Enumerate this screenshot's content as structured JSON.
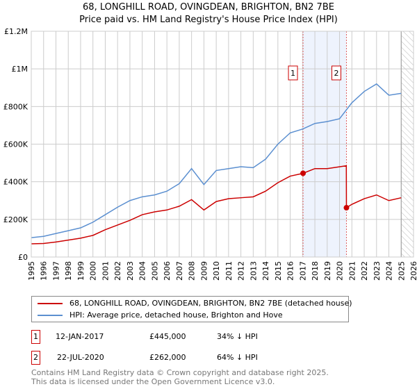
{
  "chart_data": {
    "type": "line",
    "title": "68, LONGHILL ROAD, OVINGDEAN, BRIGHTON, BN2 7BE",
    "subtitle": "Price paid vs. HM Land Registry's House Price Index (HPI)",
    "xlim": [
      1995,
      2026
    ],
    "ylim": [
      0,
      1200000
    ],
    "x_ticks": [
      "1995",
      "1996",
      "1997",
      "1998",
      "1999",
      "2000",
      "2001",
      "2002",
      "2003",
      "2004",
      "2005",
      "2006",
      "2007",
      "2008",
      "2009",
      "2010",
      "2011",
      "2012",
      "2013",
      "2014",
      "2015",
      "2016",
      "2017",
      "2018",
      "2019",
      "2020",
      "2021",
      "2022",
      "2023",
      "2024",
      "2025",
      "2026"
    ],
    "y_ticks": [
      {
        "v": 0,
        "l": "£0"
      },
      {
        "v": 200000,
        "l": "£200K"
      },
      {
        "v": 400000,
        "l": "£400K"
      },
      {
        "v": 600000,
        "l": "£600K"
      },
      {
        "v": 800000,
        "l": "£800K"
      },
      {
        "v": 1000000,
        "l": "£1M"
      },
      {
        "v": 1200000,
        "l": "£1.2M"
      }
    ],
    "grid": true,
    "shaded_period": [
      2017.04,
      2020.56
    ],
    "forecast_hatch_from": 2025.0,
    "series": [
      {
        "name": "68, LONGHILL ROAD, OVINGDEAN, BRIGHTON, BN2 7BE (detached house)",
        "color": "#cc0000",
        "x": [
          1995,
          1996,
          1997,
          1998,
          1999,
          2000,
          2001,
          2002,
          2003,
          2004,
          2005,
          2006,
          2007,
          2008,
          2009,
          2010,
          2011,
          2012,
          2013,
          2014,
          2015,
          2016,
          2017.04,
          2018,
          2019,
          2020.55,
          2020.56,
          2021,
          2022,
          2023,
          2024,
          2025
        ],
        "y": [
          70000,
          72000,
          80000,
          90000,
          100000,
          115000,
          145000,
          170000,
          195000,
          225000,
          240000,
          250000,
          270000,
          305000,
          250000,
          295000,
          310000,
          315000,
          320000,
          350000,
          395000,
          430000,
          445000,
          470000,
          470000,
          485000,
          262000,
          280000,
          310000,
          330000,
          300000,
          315000
        ]
      },
      {
        "name": "HPI: Average price, detached house, Brighton and Hove",
        "color": "#5b8fd0",
        "x": [
          1995,
          1996,
          1997,
          1998,
          1999,
          2000,
          2001,
          2002,
          2003,
          2004,
          2005,
          2006,
          2007,
          2008,
          2009,
          2010,
          2011,
          2012,
          2013,
          2014,
          2015,
          2016,
          2017,
          2018,
          2019,
          2020,
          2021,
          2022,
          2023,
          2024,
          2025
        ],
        "y": [
          103000,
          110000,
          125000,
          140000,
          155000,
          185000,
          225000,
          265000,
          300000,
          320000,
          330000,
          350000,
          390000,
          470000,
          385000,
          460000,
          470000,
          480000,
          475000,
          520000,
          600000,
          660000,
          680000,
          710000,
          720000,
          735000,
          820000,
          880000,
          920000,
          860000,
          870000
        ]
      }
    ],
    "markers": [
      {
        "label": "1",
        "x": 2017.04,
        "y": 445000
      },
      {
        "label": "2",
        "x": 2020.56,
        "y": 262000
      }
    ]
  },
  "legend": {
    "red": "68, LONGHILL ROAD, OVINGDEAN, BRIGHTON, BN2 7BE (detached house)",
    "blue": "HPI: Average price, detached house, Brighton and Hove"
  },
  "transactions": [
    {
      "n": "1",
      "date": "12-JAN-2017",
      "price": "£445,000",
      "hpi": "34% ↓ HPI"
    },
    {
      "n": "2",
      "date": "22-JUL-2020",
      "price": "£262,000",
      "hpi": "64% ↓ HPI"
    }
  ],
  "footer": {
    "line1": "Contains HM Land Registry data © Crown copyright and database right 2025.",
    "line2": "This data is licensed under the Open Government Licence v3.0."
  }
}
